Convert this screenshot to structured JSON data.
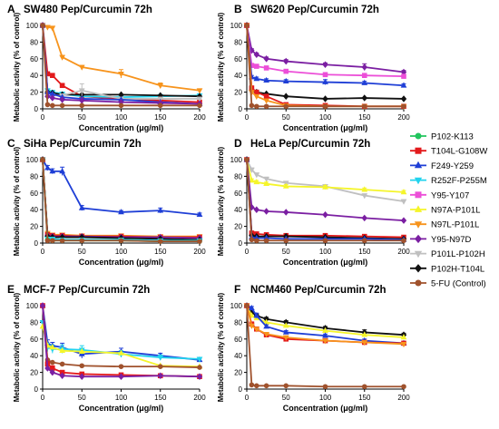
{
  "colors": {
    "P102-K113": "#22c55e",
    "T104L-G108W": "#e31a1c",
    "F249-Y259": "#1f3fd6",
    "R252F-P255M": "#22d3ee",
    "Y95-Y107": "#ec4fd8",
    "N97A-P101L": "#f5f52a",
    "N97L-P101L": "#f7941d",
    "Y95-N97D": "#7b1fa2",
    "P101L-P102H": "#c0c0c0",
    "P102H-T104L": "#111111",
    "5-FU (Control)": "#a0522d"
  },
  "markers": {
    "P102-K113": "circle",
    "T104L-G108W": "square",
    "F249-Y259": "triangle-up",
    "R252F-P255M": "triangle-down",
    "Y95-Y107": "square",
    "N97A-P101L": "triangle-up",
    "N97L-P101L": "triangle-down",
    "Y95-N97D": "diamond",
    "P101L-P102H": "triangle-down",
    "P102H-T104L": "diamond",
    "5-FU (Control)": "circle"
  },
  "legend": {
    "placement": "right",
    "items": [
      "P102-K113",
      "T104L-G108W",
      "F249-Y259",
      "R252F-P255M",
      "Y95-Y107",
      "N97A-P101L",
      "N97L-P101L",
      "Y95-N97D",
      "P101L-P102H",
      "P102H-T104L",
      "5-FU (Control)"
    ]
  },
  "chart_data": [
    {
      "type": "line",
      "panel": "A",
      "title": "SW480 Pep/Curcumin 72h",
      "xlabel": "Concentration (μg/ml)",
      "ylabel": "Metabolic activity (% of control)",
      "xlim": [
        0,
        200
      ],
      "ylim": [
        0,
        100
      ],
      "xticks": [
        0,
        50,
        100,
        150,
        200
      ],
      "yticks": [
        0,
        20,
        40,
        60,
        80,
        100
      ],
      "x": [
        0,
        6.25,
        12.5,
        25,
        50,
        100,
        150,
        200
      ],
      "series": [
        {
          "name": "N97L-P101L",
          "values": [
            100,
            98,
            97,
            62,
            50,
            42,
            28,
            22
          ],
          "errors": [
            0,
            1,
            1,
            2,
            2,
            5,
            3,
            2
          ]
        },
        {
          "name": "T104L-G108W",
          "values": [
            100,
            42,
            40,
            28,
            15,
            12,
            10,
            8
          ]
        },
        {
          "name": "R252F-P255M",
          "values": [
            100,
            22,
            20,
            18,
            15,
            14,
            15,
            16
          ],
          "errors": [
            0,
            2,
            2,
            2,
            2,
            2,
            2,
            2
          ]
        },
        {
          "name": "P102H-T104L",
          "values": [
            100,
            20,
            19,
            17,
            17,
            17,
            16,
            15
          ]
        },
        {
          "name": "P101L-P102H",
          "values": [
            100,
            17,
            16,
            16,
            22,
            12,
            12,
            12
          ],
          "errors": [
            0,
            2,
            2,
            2,
            8,
            2,
            2,
            2
          ]
        },
        {
          "name": "F249-Y259",
          "values": [
            100,
            20,
            18,
            14,
            12,
            11,
            8,
            6
          ]
        },
        {
          "name": "Y95-N97D",
          "values": [
            100,
            15,
            13,
            11,
            10,
            8,
            7,
            6
          ]
        },
        {
          "name": "5-FU (Control)",
          "values": [
            100,
            5,
            4,
            4,
            4,
            4,
            4,
            4
          ]
        }
      ]
    },
    {
      "type": "line",
      "panel": "B",
      "title": "SW620 Pep/Curcumin 72h",
      "xlabel": "Concentration (μg/ml)",
      "ylabel": "Metabolic activity (% of control)",
      "xlim": [
        0,
        200
      ],
      "ylim": [
        0,
        100
      ],
      "xticks": [
        0,
        50,
        100,
        150,
        200
      ],
      "yticks": [
        0,
        20,
        40,
        60,
        80,
        100
      ],
      "x": [
        0,
        6.25,
        12.5,
        25,
        50,
        100,
        150,
        200
      ],
      "series": [
        {
          "name": "Y95-N97D",
          "values": [
            100,
            70,
            65,
            60,
            57,
            53,
            50,
            44
          ],
          "errors": [
            0,
            2,
            2,
            2,
            2,
            2,
            4,
            2
          ]
        },
        {
          "name": "Y95-Y107",
          "values": [
            100,
            52,
            51,
            49,
            45,
            41,
            40,
            39
          ]
        },
        {
          "name": "F249-Y259",
          "values": [
            100,
            38,
            36,
            34,
            33,
            32,
            31,
            28
          ],
          "errors": [
            0,
            2,
            2,
            2,
            2,
            3,
            2,
            2
          ]
        },
        {
          "name": "P102H-T104L",
          "values": [
            100,
            22,
            20,
            18,
            15,
            12,
            13,
            12
          ]
        },
        {
          "name": "T104L-G108W",
          "values": [
            100,
            25,
            20,
            15,
            5,
            4,
            3,
            3
          ]
        },
        {
          "name": "N97L-P101L",
          "values": [
            100,
            20,
            15,
            10,
            4,
            3,
            3,
            3
          ]
        },
        {
          "name": "5-FU (Control)",
          "values": [
            100,
            4,
            3,
            3,
            3,
            3,
            3,
            3
          ]
        }
      ]
    },
    {
      "type": "line",
      "panel": "C",
      "title": "SiHa Pep/Curcumin 72h",
      "xlabel": "Concentration (μg/ml)",
      "ylabel": "Metabolic activity (% of control)",
      "xlim": [
        0,
        200
      ],
      "ylim": [
        0,
        100
      ],
      "xticks": [
        0,
        50,
        100,
        150,
        200
      ],
      "yticks": [
        0,
        20,
        40,
        60,
        80,
        100
      ],
      "x": [
        0,
        6.25,
        12.5,
        25,
        50,
        100,
        150,
        200
      ],
      "series": [
        {
          "name": "F249-Y259",
          "values": [
            100,
            90,
            86,
            86,
            42,
            37,
            39,
            34
          ],
          "errors": [
            0,
            3,
            3,
            5,
            3,
            2,
            3,
            2
          ]
        },
        {
          "name": "N97L-P101L",
          "values": [
            100,
            12,
            10,
            10,
            9,
            9,
            8,
            8
          ]
        },
        {
          "name": "T104L-G108W",
          "values": [
            100,
            10,
            9,
            9,
            8,
            8,
            7,
            7
          ]
        },
        {
          "name": "Y95-N97D",
          "values": [
            100,
            9,
            8,
            8,
            8,
            7,
            7,
            6
          ]
        },
        {
          "name": "P102H-T104L",
          "values": [
            100,
            8,
            7,
            7,
            7,
            6,
            5,
            4
          ]
        },
        {
          "name": "R252F-P255M",
          "values": [
            100,
            5,
            5,
            4,
            4,
            4,
            3,
            3
          ]
        },
        {
          "name": "P102-K113",
          "values": [
            100,
            4,
            3,
            3,
            3,
            3,
            2,
            2
          ]
        },
        {
          "name": "5-FU (Control)",
          "values": [
            100,
            3,
            3,
            3,
            3,
            3,
            2,
            2
          ]
        }
      ]
    },
    {
      "type": "line",
      "panel": "D",
      "title": "HeLa Pep/Curcumin 72h",
      "xlabel": "Concentration (μg/ml)",
      "ylabel": "Metabolic activity (% of control)",
      "xlim": [
        0,
        200
      ],
      "ylim": [
        0,
        100
      ],
      "xticks": [
        0,
        50,
        100,
        150,
        200
      ],
      "yticks": [
        0,
        20,
        40,
        60,
        80,
        100
      ],
      "x": [
        0,
        6.25,
        12.5,
        25,
        50,
        100,
        150,
        200
      ],
      "series": [
        {
          "name": "P101L-P102H",
          "values": [
            100,
            88,
            82,
            77,
            72,
            68,
            57,
            50
          ],
          "errors": [
            0,
            2,
            2,
            2,
            2,
            2,
            2,
            2
          ]
        },
        {
          "name": "N97A-P101L",
          "values": [
            100,
            75,
            73,
            71,
            68,
            67,
            64,
            61
          ],
          "errors": [
            0,
            2,
            2,
            2,
            2,
            2,
            2,
            2
          ]
        },
        {
          "name": "Y95-N97D",
          "values": [
            100,
            43,
            40,
            38,
            37,
            34,
            30,
            27
          ]
        },
        {
          "name": "T104L-G108W",
          "values": [
            100,
            12,
            11,
            10,
            9,
            9,
            8,
            7
          ]
        },
        {
          "name": "P102H-T104L",
          "values": [
            100,
            9,
            8,
            8,
            8,
            7,
            6,
            5
          ]
        },
        {
          "name": "F249-Y259",
          "values": [
            100,
            7,
            6,
            6,
            5,
            5,
            5,
            4
          ]
        },
        {
          "name": "5-FU (Control)",
          "values": [
            100,
            4,
            3,
            3,
            3,
            3,
            3,
            3
          ]
        }
      ]
    },
    {
      "type": "line",
      "panel": "E",
      "title": "MCF-7 Pep/Curcumin 72h",
      "xlabel": "Concentration (μg/ml)",
      "ylabel": "Metabolic activity (% of control)",
      "xlim": [
        0,
        200
      ],
      "ylim": [
        0,
        100
      ],
      "xticks": [
        0,
        50,
        100,
        150,
        200
      ],
      "yticks": [
        0,
        20,
        40,
        60,
        80,
        100
      ],
      "x": [
        0,
        6.25,
        12.5,
        25,
        50,
        100,
        150,
        200
      ],
      "series": [
        {
          "name": "F249-Y259",
          "values": [
            100,
            55,
            52,
            50,
            42,
            45,
            40,
            35
          ],
          "errors": [
            0,
            4,
            4,
            5,
            5,
            4,
            3,
            2
          ]
        },
        {
          "name": "R252F-P255M",
          "values": [
            80,
            50,
            48,
            48,
            47,
            42,
            38,
            36
          ],
          "errors": [
            0,
            5,
            5,
            5,
            5,
            4,
            3,
            2
          ]
        },
        {
          "name": "N97A-P101L",
          "values": [
            75,
            52,
            50,
            46,
            45,
            43,
            28,
            27
          ]
        },
        {
          "name": "5-FU (Control)",
          "values": [
            100,
            35,
            32,
            30,
            28,
            27,
            27,
            26
          ]
        },
        {
          "name": "T104L-G108W",
          "values": [
            100,
            30,
            25,
            20,
            18,
            17,
            16,
            15
          ],
          "errors": [
            0,
            3,
            3,
            2,
            2,
            2,
            2,
            2
          ]
        },
        {
          "name": "Y95-N97D",
          "values": [
            100,
            25,
            20,
            16,
            15,
            15,
            16,
            15
          ]
        }
      ]
    },
    {
      "type": "line",
      "panel": "F",
      "title": "NCM460 Pep/Curcumin 72h",
      "xlabel": "Concentration (μg/ml)",
      "ylabel": "Metabolic activity (% of control)",
      "xlim": [
        0,
        200
      ],
      "ylim": [
        0,
        100
      ],
      "xticks": [
        0,
        50,
        100,
        150,
        200
      ],
      "yticks": [
        0,
        20,
        40,
        60,
        80,
        100
      ],
      "x": [
        0,
        6.25,
        12.5,
        25,
        50,
        100,
        150,
        200
      ],
      "series": [
        {
          "name": "P102H-T104L",
          "values": [
            100,
            92,
            88,
            84,
            80,
            73,
            68,
            65
          ],
          "errors": [
            0,
            2,
            2,
            2,
            2,
            2,
            3,
            2
          ]
        },
        {
          "name": "N97A-P101L",
          "values": [
            100,
            88,
            85,
            80,
            76,
            70,
            65,
            62
          ]
        },
        {
          "name": "F249-Y259",
          "values": [
            100,
            97,
            88,
            75,
            68,
            64,
            58,
            55
          ],
          "errors": [
            0,
            2,
            3,
            2,
            2,
            2,
            2,
            2
          ]
        },
        {
          "name": "T104L-G108W",
          "values": [
            100,
            78,
            72,
            65,
            60,
            58,
            56,
            55
          ]
        },
        {
          "name": "N97L-P101L",
          "values": [
            100,
            76,
            72,
            66,
            62,
            58,
            56,
            54
          ]
        },
        {
          "name": "5-FU (Control)",
          "values": [
            100,
            5,
            4,
            4,
            4,
            3,
            3,
            3
          ]
        }
      ]
    }
  ]
}
